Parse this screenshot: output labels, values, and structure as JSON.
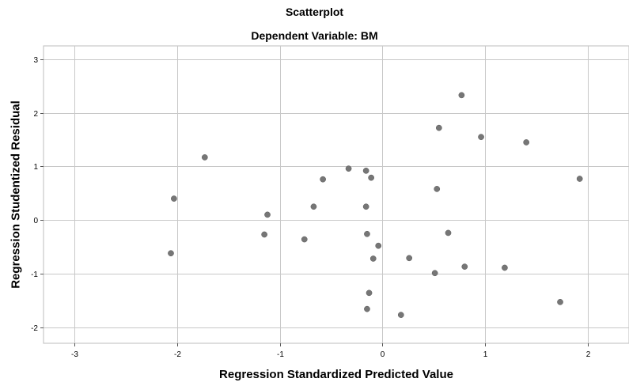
{
  "chart_data": {
    "type": "scatter",
    "title": "Scatterplot",
    "subtitle": "Dependent Variable: BM",
    "xlabel": "Regression Standardized Predicted Value",
    "ylabel": "Regression Studentized Residual",
    "xlim": [
      -3.3,
      2.4
    ],
    "ylim": [
      -2.3,
      3.25
    ],
    "xticks": [
      -3,
      -2,
      -1,
      0,
      1,
      2
    ],
    "yticks": [
      -2,
      -1,
      0,
      1,
      2,
      3
    ],
    "xtick_labels": [
      "-3",
      "-2",
      "-1",
      "0",
      "1",
      "2"
    ],
    "ytick_labels": [
      "-2",
      "-1",
      "0",
      "1",
      "2",
      "3"
    ],
    "grid": true,
    "point_color": "#767676",
    "points": [
      {
        "x": -2.06,
        "y": -0.62
      },
      {
        "x": -2.03,
        "y": 0.4
      },
      {
        "x": -1.73,
        "y": 1.17
      },
      {
        "x": -1.15,
        "y": -0.27
      },
      {
        "x": -1.12,
        "y": 0.1
      },
      {
        "x": -0.76,
        "y": -0.36
      },
      {
        "x": -0.67,
        "y": 0.25
      },
      {
        "x": -0.58,
        "y": 0.76
      },
      {
        "x": -0.33,
        "y": 0.96
      },
      {
        "x": -0.16,
        "y": 0.92
      },
      {
        "x": -0.16,
        "y": 0.25
      },
      {
        "x": -0.15,
        "y": -0.26
      },
      {
        "x": -0.15,
        "y": -1.66
      },
      {
        "x": -0.13,
        "y": -1.36
      },
      {
        "x": -0.11,
        "y": 0.79
      },
      {
        "x": -0.09,
        "y": -0.72
      },
      {
        "x": -0.04,
        "y": -0.48
      },
      {
        "x": 0.18,
        "y": -1.77
      },
      {
        "x": 0.26,
        "y": -0.71
      },
      {
        "x": 0.51,
        "y": -0.99
      },
      {
        "x": 0.53,
        "y": 0.58
      },
      {
        "x": 0.55,
        "y": 1.72
      },
      {
        "x": 0.64,
        "y": -0.24
      },
      {
        "x": 0.77,
        "y": 2.33
      },
      {
        "x": 0.8,
        "y": -0.87
      },
      {
        "x": 0.96,
        "y": 1.55
      },
      {
        "x": 1.19,
        "y": -0.89
      },
      {
        "x": 1.4,
        "y": 1.45
      },
      {
        "x": 1.73,
        "y": -1.53
      },
      {
        "x": 1.92,
        "y": 0.77
      }
    ]
  }
}
